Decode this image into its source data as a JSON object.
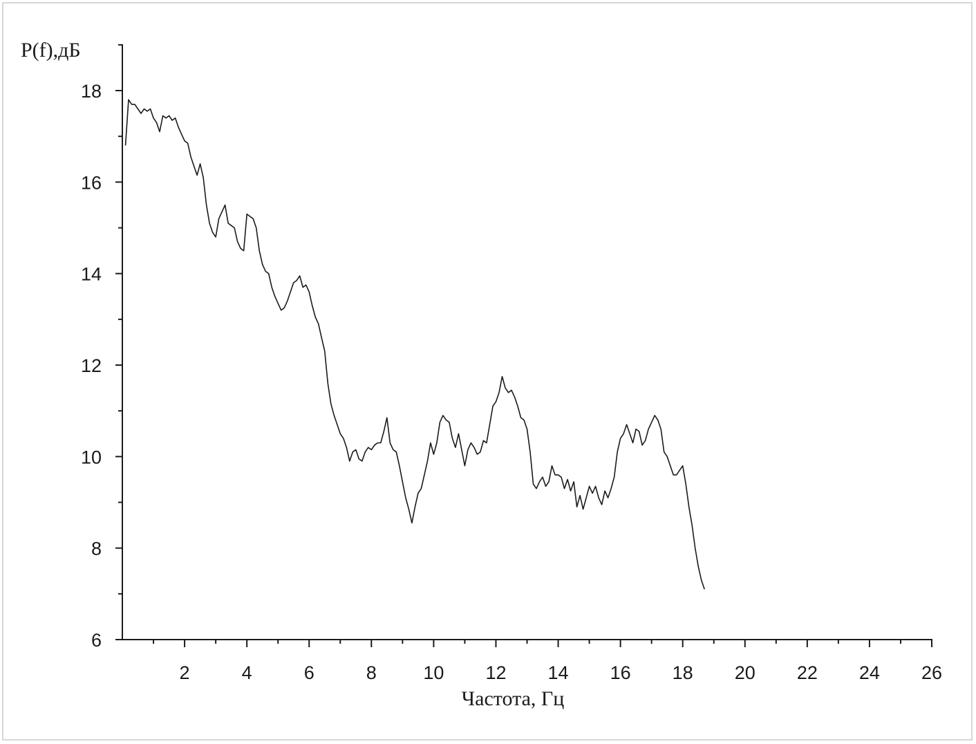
{
  "chart_data": {
    "type": "line",
    "ylabel": "P(f),дБ",
    "xlabel": "Частота, Гц",
    "xlim": [
      0,
      26
    ],
    "ylim": [
      6,
      19
    ],
    "x_ticks": [
      2,
      4,
      6,
      8,
      10,
      12,
      14,
      16,
      18,
      20,
      22,
      24,
      26
    ],
    "y_ticks": [
      6,
      8,
      10,
      12,
      14,
      16,
      18
    ],
    "grid": false,
    "line_color": "#1a1a1a",
    "series": [
      {
        "points": [
          [
            0.1,
            16.8
          ],
          [
            0.2,
            17.8
          ],
          [
            0.3,
            17.7
          ],
          [
            0.4,
            17.7
          ],
          [
            0.5,
            17.6
          ],
          [
            0.6,
            17.5
          ],
          [
            0.7,
            17.6
          ],
          [
            0.8,
            17.55
          ],
          [
            0.9,
            17.6
          ],
          [
            1.0,
            17.4
          ],
          [
            1.1,
            17.3
          ],
          [
            1.2,
            17.1
          ],
          [
            1.3,
            17.45
          ],
          [
            1.4,
            17.4
          ],
          [
            1.5,
            17.45
          ],
          [
            1.6,
            17.35
          ],
          [
            1.7,
            17.4
          ],
          [
            1.8,
            17.2
          ],
          [
            1.9,
            17.05
          ],
          [
            2.0,
            16.9
          ],
          [
            2.1,
            16.85
          ],
          [
            2.2,
            16.55
          ],
          [
            2.3,
            16.35
          ],
          [
            2.4,
            16.15
          ],
          [
            2.5,
            16.4
          ],
          [
            2.6,
            16.1
          ],
          [
            2.7,
            15.5
          ],
          [
            2.8,
            15.1
          ],
          [
            2.9,
            14.9
          ],
          [
            3.0,
            14.8
          ],
          [
            3.1,
            15.2
          ],
          [
            3.2,
            15.35
          ],
          [
            3.3,
            15.5
          ],
          [
            3.4,
            15.1
          ],
          [
            3.5,
            15.05
          ],
          [
            3.6,
            15.0
          ],
          [
            3.7,
            14.7
          ],
          [
            3.8,
            14.55
          ],
          [
            3.9,
            14.5
          ],
          [
            4.0,
            15.3
          ],
          [
            4.1,
            15.25
          ],
          [
            4.2,
            15.2
          ],
          [
            4.3,
            15.0
          ],
          [
            4.4,
            14.5
          ],
          [
            4.5,
            14.2
          ],
          [
            4.6,
            14.05
          ],
          [
            4.7,
            14.0
          ],
          [
            4.8,
            13.7
          ],
          [
            4.9,
            13.5
          ],
          [
            5.0,
            13.35
          ],
          [
            5.1,
            13.2
          ],
          [
            5.2,
            13.25
          ],
          [
            5.3,
            13.4
          ],
          [
            5.4,
            13.6
          ],
          [
            5.5,
            13.8
          ],
          [
            5.6,
            13.85
          ],
          [
            5.7,
            13.95
          ],
          [
            5.8,
            13.7
          ],
          [
            5.9,
            13.75
          ],
          [
            6.0,
            13.6
          ],
          [
            6.1,
            13.3
          ],
          [
            6.2,
            13.05
          ],
          [
            6.3,
            12.9
          ],
          [
            6.4,
            12.6
          ],
          [
            6.5,
            12.3
          ],
          [
            6.6,
            11.6
          ],
          [
            6.7,
            11.15
          ],
          [
            6.8,
            10.9
          ],
          [
            6.9,
            10.7
          ],
          [
            7.0,
            10.5
          ],
          [
            7.1,
            10.4
          ],
          [
            7.2,
            10.2
          ],
          [
            7.3,
            9.9
          ],
          [
            7.4,
            10.1
          ],
          [
            7.5,
            10.15
          ],
          [
            7.6,
            9.95
          ],
          [
            7.7,
            9.9
          ],
          [
            7.8,
            10.1
          ],
          [
            7.9,
            10.2
          ],
          [
            8.0,
            10.15
          ],
          [
            8.1,
            10.25
          ],
          [
            8.2,
            10.3
          ],
          [
            8.3,
            10.3
          ],
          [
            8.4,
            10.55
          ],
          [
            8.5,
            10.85
          ],
          [
            8.6,
            10.3
          ],
          [
            8.7,
            10.15
          ],
          [
            8.8,
            10.1
          ],
          [
            8.9,
            9.8
          ],
          [
            9.0,
            9.45
          ],
          [
            9.1,
            9.1
          ],
          [
            9.2,
            8.85
          ],
          [
            9.3,
            8.55
          ],
          [
            9.4,
            8.9
          ],
          [
            9.5,
            9.2
          ],
          [
            9.6,
            9.3
          ],
          [
            9.7,
            9.6
          ],
          [
            9.8,
            9.9
          ],
          [
            9.9,
            10.3
          ],
          [
            10.0,
            10.05
          ],
          [
            10.1,
            10.3
          ],
          [
            10.2,
            10.75
          ],
          [
            10.3,
            10.9
          ],
          [
            10.4,
            10.8
          ],
          [
            10.5,
            10.75
          ],
          [
            10.6,
            10.4
          ],
          [
            10.7,
            10.2
          ],
          [
            10.8,
            10.5
          ],
          [
            10.9,
            10.15
          ],
          [
            11.0,
            9.8
          ],
          [
            11.1,
            10.15
          ],
          [
            11.2,
            10.3
          ],
          [
            11.3,
            10.2
          ],
          [
            11.4,
            10.05
          ],
          [
            11.5,
            10.1
          ],
          [
            11.6,
            10.35
          ],
          [
            11.7,
            10.3
          ],
          [
            11.8,
            10.7
          ],
          [
            11.9,
            11.1
          ],
          [
            12.0,
            11.2
          ],
          [
            12.1,
            11.4
          ],
          [
            12.2,
            11.75
          ],
          [
            12.3,
            11.5
          ],
          [
            12.4,
            11.4
          ],
          [
            12.5,
            11.45
          ],
          [
            12.6,
            11.3
          ],
          [
            12.7,
            11.1
          ],
          [
            12.8,
            10.85
          ],
          [
            12.9,
            10.8
          ],
          [
            13.0,
            10.6
          ],
          [
            13.1,
            10.1
          ],
          [
            13.2,
            9.4
          ],
          [
            13.3,
            9.3
          ],
          [
            13.4,
            9.45
          ],
          [
            13.5,
            9.55
          ],
          [
            13.6,
            9.35
          ],
          [
            13.7,
            9.45
          ],
          [
            13.8,
            9.8
          ],
          [
            13.9,
            9.6
          ],
          [
            14.0,
            9.6
          ],
          [
            14.1,
            9.55
          ],
          [
            14.2,
            9.3
          ],
          [
            14.3,
            9.5
          ],
          [
            14.4,
            9.25
          ],
          [
            14.5,
            9.45
          ],
          [
            14.6,
            8.9
          ],
          [
            14.7,
            9.15
          ],
          [
            14.8,
            8.85
          ],
          [
            14.9,
            9.1
          ],
          [
            15.0,
            9.35
          ],
          [
            15.1,
            9.2
          ],
          [
            15.2,
            9.35
          ],
          [
            15.3,
            9.1
          ],
          [
            15.4,
            8.95
          ],
          [
            15.5,
            9.25
          ],
          [
            15.6,
            9.1
          ],
          [
            15.7,
            9.3
          ],
          [
            15.8,
            9.55
          ],
          [
            15.9,
            10.1
          ],
          [
            16.0,
            10.4
          ],
          [
            16.1,
            10.5
          ],
          [
            16.2,
            10.7
          ],
          [
            16.3,
            10.5
          ],
          [
            16.4,
            10.3
          ],
          [
            16.5,
            10.6
          ],
          [
            16.6,
            10.55
          ],
          [
            16.7,
            10.25
          ],
          [
            16.8,
            10.35
          ],
          [
            16.9,
            10.6
          ],
          [
            17.0,
            10.75
          ],
          [
            17.1,
            10.9
          ],
          [
            17.2,
            10.8
          ],
          [
            17.3,
            10.6
          ],
          [
            17.4,
            10.1
          ],
          [
            17.5,
            10.0
          ],
          [
            17.6,
            9.8
          ],
          [
            17.7,
            9.6
          ],
          [
            17.8,
            9.6
          ],
          [
            17.9,
            9.7
          ],
          [
            18.0,
            9.8
          ],
          [
            18.1,
            9.4
          ],
          [
            18.2,
            8.9
          ],
          [
            18.3,
            8.5
          ],
          [
            18.4,
            8.0
          ],
          [
            18.5,
            7.6
          ],
          [
            18.6,
            7.3
          ],
          [
            18.7,
            7.1
          ]
        ]
      }
    ]
  }
}
